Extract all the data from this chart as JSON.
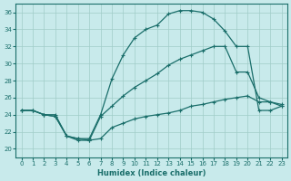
{
  "xlabel": "Humidex (Indice chaleur)",
  "bg_color": "#c8eaeb",
  "grid_color": "#a0ccc8",
  "line_color": "#1a6e6a",
  "xlim": [
    -0.5,
    23.5
  ],
  "ylim": [
    19,
    37
  ],
  "xticks": [
    0,
    1,
    2,
    3,
    4,
    5,
    6,
    7,
    8,
    9,
    10,
    11,
    12,
    13,
    14,
    15,
    16,
    17,
    18,
    19,
    20,
    21,
    22,
    23
  ],
  "yticks": [
    20,
    22,
    24,
    26,
    28,
    30,
    32,
    34,
    36
  ],
  "line1_x": [
    0,
    1,
    2,
    3,
    4,
    5,
    6,
    7,
    8,
    9,
    10,
    11,
    12,
    13,
    14,
    15,
    16,
    17,
    18,
    19,
    20,
    21,
    22,
    23
  ],
  "line1_y": [
    24.5,
    24.5,
    24.0,
    24.0,
    21.5,
    21.2,
    21.2,
    24.0,
    28.2,
    31.0,
    33.0,
    34.0,
    34.5,
    35.8,
    36.2,
    36.2,
    36.0,
    35.2,
    33.8,
    32.0,
    32.0,
    24.5,
    24.5,
    25.0
  ],
  "line2_x": [
    0,
    1,
    2,
    3,
    4,
    5,
    6,
    7,
    8,
    9,
    10,
    11,
    12,
    13,
    14,
    15,
    16,
    17,
    18,
    19,
    20,
    21,
    22,
    23
  ],
  "line2_y": [
    24.5,
    24.5,
    24.0,
    23.8,
    21.5,
    21.0,
    21.0,
    23.8,
    25.0,
    26.2,
    27.2,
    28.0,
    28.8,
    29.8,
    30.5,
    31.0,
    31.5,
    32.0,
    32.0,
    29.0,
    29.0,
    26.0,
    25.5,
    25.0
  ],
  "line3_x": [
    0,
    1,
    2,
    3,
    4,
    5,
    6,
    7,
    8,
    9,
    10,
    11,
    12,
    13,
    14,
    15,
    16,
    17,
    18,
    19,
    20,
    21,
    22,
    23
  ],
  "line3_y": [
    24.5,
    24.5,
    24.0,
    23.8,
    21.5,
    21.2,
    21.0,
    21.2,
    22.5,
    23.0,
    23.5,
    23.8,
    24.0,
    24.2,
    24.5,
    25.0,
    25.2,
    25.5,
    25.8,
    26.0,
    26.2,
    25.5,
    25.5,
    25.2
  ]
}
